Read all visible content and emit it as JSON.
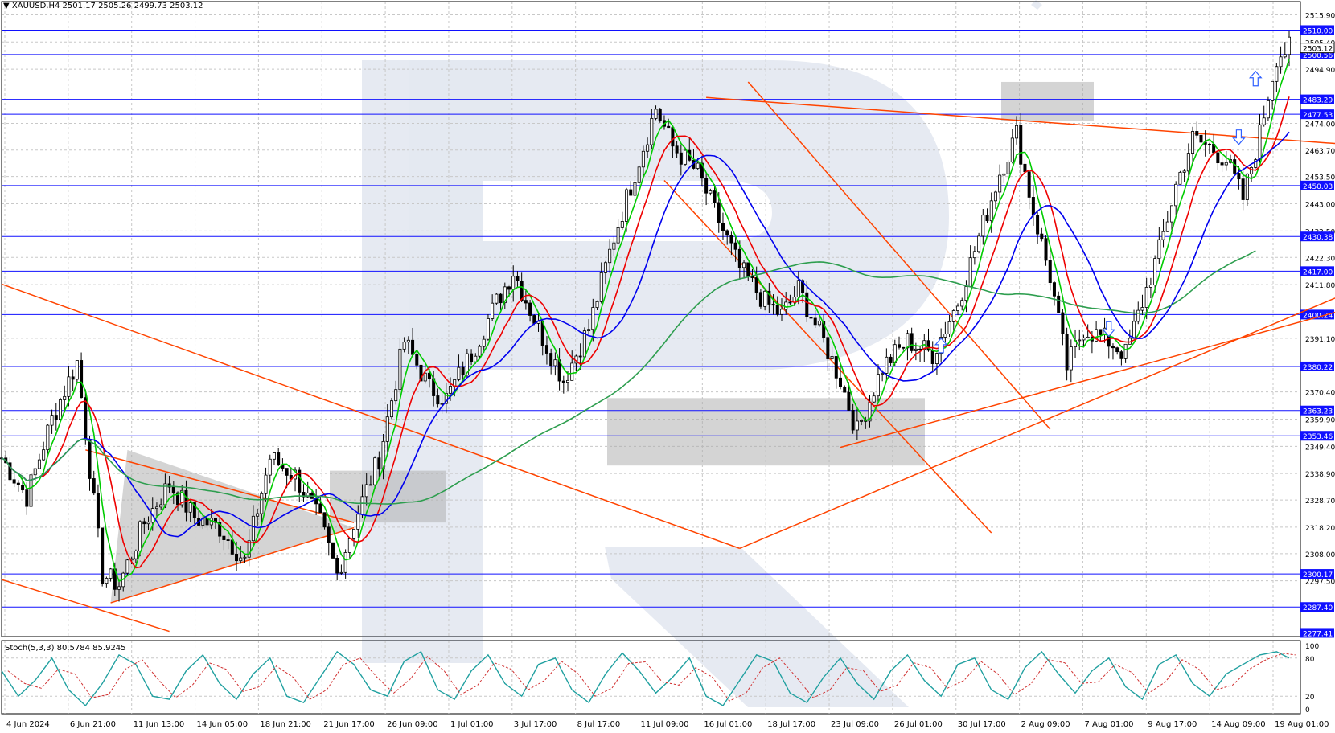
{
  "header": {
    "symbol": "XAUUSD,H4",
    "ohlc": "2501.17 2505.26 2499.73 2503.12"
  },
  "stochastic": {
    "label": "Stoch(5,3,3) 80.5784 85.9245",
    "levels": [
      "100",
      "80",
      "20",
      "0"
    ]
  },
  "colors": {
    "background": "#ffffff",
    "grid": "#c8c8c8",
    "level_line": "#1010ff",
    "level_badge": "#1010ff",
    "trend_line": "#ff4400",
    "ma_fast": "#00cc00",
    "ma_mid": "#ee0000",
    "ma_slow": "#0000ee",
    "ma_long": "#2e9e4f",
    "stoch_main": "#20a0a0",
    "stoch_signal": "#d03030",
    "arrow": "#3060ff",
    "zone": "#a9a9a9",
    "candle": "#000000"
  },
  "chart_data": {
    "type": "candlestick",
    "symbol": "XAUUSD",
    "timeframe": "H4",
    "ylim": [
      2276,
      2521
    ],
    "y_ticks": [
      "2515.90",
      "2505.40",
      "2494.90",
      "2474.00",
      "2463.70",
      "2453.50",
      "2443.00",
      "2432.50",
      "2422.30",
      "2411.80",
      "2391.10",
      "2370.40",
      "2359.90",
      "2349.40",
      "2338.90",
      "2328.70",
      "2318.20",
      "2308.00",
      "2297.50"
    ],
    "price_levels": [
      "2510.00",
      "2500.56",
      "2483.29",
      "2477.53",
      "2450.03",
      "2430.38",
      "2417.00",
      "2400.24",
      "2380.22",
      "2363.23",
      "2353.46",
      "2300.17",
      "2287.40",
      "2277.41"
    ],
    "current_price": "2503.12",
    "x_labels": [
      "4 Jun 2024",
      "6 Jun 21:00",
      "11 Jun 13:00",
      "14 Jun 05:00",
      "18 Jun 21:00",
      "21 Jun 17:00",
      "26 Jun 09:00",
      "1 Jul 01:00",
      "3 Jul 17:00",
      "8 Jul 17:00",
      "11 Jul 09:00",
      "16 Jul 01:00",
      "18 Jul 17:00",
      "23 Jul 09:00",
      "26 Jul 01:00",
      "30 Jul 17:00",
      "2 Aug 09:00",
      "7 Aug 01:00",
      "9 Aug 17:00",
      "14 Aug 09:00",
      "19 Aug 01:00"
    ],
    "close_path": [
      [
        0,
        2345
      ],
      [
        6,
        2330
      ],
      [
        12,
        2360
      ],
      [
        18,
        2382
      ],
      [
        24,
        2300
      ],
      [
        28,
        2296
      ],
      [
        34,
        2320
      ],
      [
        40,
        2335
      ],
      [
        46,
        2322
      ],
      [
        52,
        2318
      ],
      [
        58,
        2305
      ],
      [
        64,
        2345
      ],
      [
        70,
        2338
      ],
      [
        76,
        2320
      ],
      [
        80,
        2300
      ],
      [
        84,
        2320
      ],
      [
        90,
        2345
      ],
      [
        96,
        2390
      ],
      [
        102,
        2372
      ],
      [
        106,
        2368
      ],
      [
        112,
        2385
      ],
      [
        118,
        2405
      ],
      [
        122,
        2417
      ],
      [
        128,
        2395
      ],
      [
        134,
        2375
      ],
      [
        140,
        2395
      ],
      [
        146,
        2430
      ],
      [
        152,
        2460
      ],
      [
        156,
        2480
      ],
      [
        160,
        2465
      ],
      [
        166,
        2455
      ],
      [
        170,
        2440
      ],
      [
        176,
        2418
      ],
      [
        182,
        2405
      ],
      [
        186,
        2400
      ],
      [
        190,
        2410
      ],
      [
        196,
        2390
      ],
      [
        200,
        2375
      ],
      [
        204,
        2355
      ],
      [
        210,
        2380
      ],
      [
        216,
        2390
      ],
      [
        222,
        2385
      ],
      [
        228,
        2405
      ],
      [
        234,
        2435
      ],
      [
        238,
        2455
      ],
      [
        242,
        2470
      ],
      [
        246,
        2440
      ],
      [
        250,
        2415
      ],
      [
        254,
        2380
      ],
      [
        258,
        2395
      ],
      [
        264,
        2390
      ],
      [
        268,
        2385
      ],
      [
        272,
        2405
      ],
      [
        276,
        2425
      ],
      [
        280,
        2450
      ],
      [
        284,
        2468
      ],
      [
        288,
        2465
      ],
      [
        292,
        2460
      ],
      [
        296,
        2445
      ],
      [
        300,
        2470
      ],
      [
        304,
        2500
      ],
      [
        307,
        2503
      ]
    ],
    "stoch_path": [
      [
        0,
        60
      ],
      [
        4,
        20
      ],
      [
        8,
        45
      ],
      [
        12,
        80
      ],
      [
        16,
        30
      ],
      [
        20,
        5
      ],
      [
        24,
        40
      ],
      [
        28,
        85
      ],
      [
        32,
        70
      ],
      [
        36,
        20
      ],
      [
        40,
        15
      ],
      [
        44,
        60
      ],
      [
        48,
        85
      ],
      [
        52,
        40
      ],
      [
        56,
        15
      ],
      [
        60,
        55
      ],
      [
        64,
        80
      ],
      [
        68,
        20
      ],
      [
        72,
        10
      ],
      [
        76,
        50
      ],
      [
        80,
        90
      ],
      [
        84,
        70
      ],
      [
        88,
        30
      ],
      [
        92,
        20
      ],
      [
        96,
        75
      ],
      [
        100,
        90
      ],
      [
        104,
        30
      ],
      [
        108,
        15
      ],
      [
        112,
        60
      ],
      [
        116,
        85
      ],
      [
        120,
        40
      ],
      [
        124,
        20
      ],
      [
        128,
        70
      ],
      [
        132,
        80
      ],
      [
        136,
        30
      ],
      [
        140,
        10
      ],
      [
        144,
        55
      ],
      [
        148,
        88
      ],
      [
        152,
        60
      ],
      [
        156,
        25
      ],
      [
        160,
        50
      ],
      [
        164,
        80
      ],
      [
        168,
        20
      ],
      [
        172,
        5
      ],
      [
        176,
        45
      ],
      [
        180,
        85
      ],
      [
        184,
        75
      ],
      [
        188,
        25
      ],
      [
        192,
        10
      ],
      [
        196,
        50
      ],
      [
        200,
        80
      ],
      [
        204,
        40
      ],
      [
        208,
        15
      ],
      [
        212,
        60
      ],
      [
        216,
        85
      ],
      [
        220,
        45
      ],
      [
        224,
        20
      ],
      [
        228,
        70
      ],
      [
        232,
        80
      ],
      [
        236,
        30
      ],
      [
        240,
        15
      ],
      [
        244,
        65
      ],
      [
        248,
        90
      ],
      [
        252,
        55
      ],
      [
        256,
        25
      ],
      [
        260,
        60
      ],
      [
        264,
        80
      ],
      [
        268,
        35
      ],
      [
        272,
        15
      ],
      [
        276,
        70
      ],
      [
        280,
        85
      ],
      [
        284,
        40
      ],
      [
        288,
        20
      ],
      [
        292,
        55
      ],
      [
        296,
        70
      ],
      [
        300,
        85
      ],
      [
        304,
        90
      ],
      [
        307,
        80
      ]
    ],
    "stoch_values": {
      "main": 80.5784,
      "signal": 85.9245
    },
    "stoch_ylim": [
      0,
      100
    ]
  }
}
